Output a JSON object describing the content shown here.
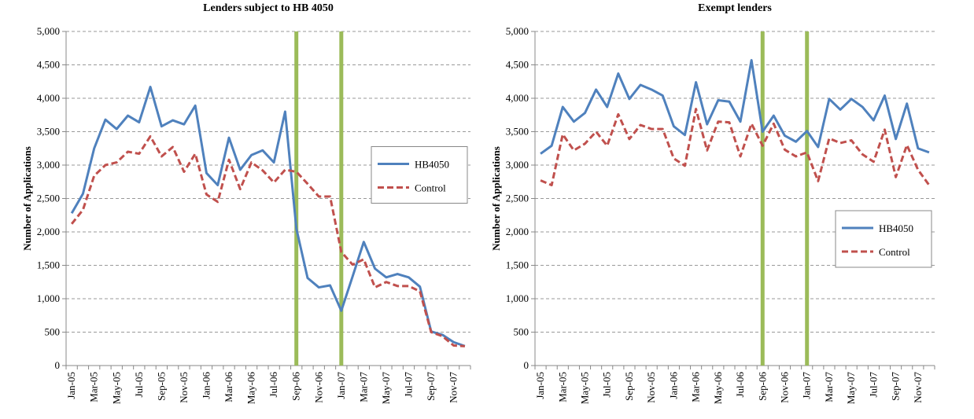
{
  "chart_data": [
    {
      "type": "line",
      "title": "Lenders subject to HB 4050",
      "y_label": "Number of Applications",
      "categories": [
        "Jan-05",
        null,
        "Mar-05",
        null,
        "May-05",
        null,
        "Jul-05",
        null,
        "Sep-05",
        null,
        "Nov-05",
        null,
        "Jan-06",
        null,
        "Mar-06",
        null,
        "May-06",
        null,
        "Jul-06",
        null,
        "Sep-06",
        null,
        "Nov-06",
        null,
        "Jan-07",
        null,
        "Mar-07",
        null,
        "May-07",
        null,
        "Jul-07",
        null,
        "Sep-07",
        null,
        "Nov-07",
        null
      ],
      "series": [
        {
          "name": "HB4050",
          "color": "#4f81bd",
          "dashed": false,
          "values": [
            2280,
            2570,
            3250,
            3680,
            3540,
            3740,
            3640,
            4170,
            3580,
            3670,
            3610,
            3890,
            2880,
            2700,
            3410,
            2930,
            3150,
            3220,
            3040,
            3800,
            2050,
            1310,
            1170,
            1200,
            820,
            1330,
            1850,
            1450,
            1320,
            1370,
            1320,
            1180,
            510,
            460,
            350,
            290
          ]
        },
        {
          "name": "Control",
          "color": "#c0504d",
          "dashed": true,
          "values": [
            2120,
            2330,
            2840,
            3000,
            3040,
            3200,
            3170,
            3430,
            3130,
            3270,
            2900,
            3170,
            2560,
            2450,
            3080,
            2640,
            3040,
            2920,
            2740,
            2930,
            2900,
            2720,
            2530,
            2530,
            1700,
            1510,
            1590,
            1170,
            1250,
            1190,
            1190,
            1110,
            500,
            440,
            300,
            290
          ]
        }
      ],
      "event_markers": [
        "Sep-06",
        "Jan-07"
      ],
      "event_color": "#9bbb59",
      "ylim": [
        0,
        5000
      ],
      "yticks": [
        0,
        500,
        {
          "value": 1000,
          "label": "1,000"
        },
        {
          "value": 1500,
          "label": "1,500"
        },
        {
          "value": 2000,
          "label": "2,000"
        },
        {
          "value": 2500,
          "label": "2,500"
        },
        {
          "value": 3000,
          "label": "3,000"
        },
        {
          "value": 3500,
          "label": "3,500"
        },
        {
          "value": 4000,
          "label": "4,000"
        },
        {
          "value": 4500,
          "label": "4,500"
        },
        {
          "value": 5000,
          "label": "5,000"
        }
      ],
      "grid": true,
      "legend": "right"
    },
    {
      "type": "line",
      "title": "Exempt lenders",
      "y_label": "Number of Applications",
      "categories": [
        "Jan-05",
        null,
        "Mar-05",
        null,
        "May-05",
        null,
        "Jul-05",
        null,
        "Sep-05",
        null,
        "Nov-05",
        null,
        "Jan-06",
        null,
        "Mar-06",
        null,
        "May-06",
        null,
        "Jul-06",
        null,
        "Sep-06",
        null,
        "Nov-06",
        null,
        "Jan-07",
        null,
        "Mar-07",
        null,
        "May-07",
        null,
        "Jul-07",
        null,
        "Sep-07",
        null,
        "Nov-07",
        null
      ],
      "series": [
        {
          "name": "HB4050",
          "color": "#4f81bd",
          "dashed": false,
          "values": [
            3170,
            3290,
            3870,
            3650,
            3780,
            4130,
            3870,
            4370,
            3990,
            4200,
            4130,
            4040,
            3580,
            3450,
            4240,
            3610,
            3970,
            3950,
            3650,
            4570,
            3500,
            3740,
            3440,
            3350,
            3510,
            3270,
            3990,
            3830,
            3990,
            3870,
            3670,
            4040,
            3390,
            3920,
            3250,
            3190
          ]
        },
        {
          "name": "Control",
          "color": "#c0504d",
          "dashed": true,
          "values": [
            2770,
            2700,
            3460,
            3220,
            3320,
            3500,
            3290,
            3760,
            3390,
            3600,
            3540,
            3540,
            3100,
            2990,
            3840,
            3220,
            3650,
            3640,
            3130,
            3620,
            3290,
            3620,
            3230,
            3130,
            3190,
            2760,
            3400,
            3330,
            3370,
            3160,
            3050,
            3530,
            2820,
            3300,
            2930,
            2700
          ]
        }
      ],
      "event_markers": [
        "Sep-06",
        "Jan-07"
      ],
      "event_color": "#9bbb59",
      "ylim": [
        0,
        5000
      ],
      "yticks": [
        0,
        500,
        {
          "value": 1000,
          "label": "1,000"
        },
        {
          "value": 1500,
          "label": "1,500"
        },
        {
          "value": 2000,
          "label": "2,000"
        },
        {
          "value": 2500,
          "label": "2,500"
        },
        {
          "value": 3000,
          "label": "3,000"
        },
        {
          "value": 3500,
          "label": "3,500"
        },
        {
          "value": 4000,
          "label": "4,000"
        },
        {
          "value": 4500,
          "label": "4,500"
        },
        {
          "value": 5000,
          "label": "5,000"
        }
      ],
      "grid": true,
      "legend": "lower right"
    }
  ]
}
